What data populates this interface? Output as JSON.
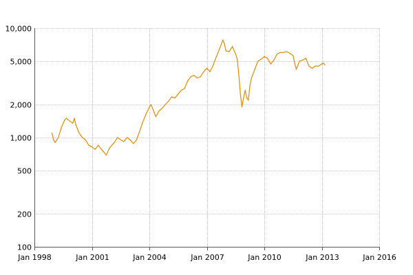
{
  "chart_data": {
    "type": "line",
    "title": "",
    "xlabel": "",
    "ylabel": "",
    "scale": {
      "y": "log"
    },
    "grid": true,
    "legend": "none",
    "xlim": [
      "1998-01",
      "2016-01"
    ],
    "ylim": [
      100,
      10000
    ],
    "x_ticks": [
      {
        "value": "1998-01",
        "label": "Jan 1998"
      },
      {
        "value": "2001-01",
        "label": "Jan 2001"
      },
      {
        "value": "2004-01",
        "label": "Jan 2004"
      },
      {
        "value": "2007-01",
        "label": "Jan 2007"
      },
      {
        "value": "2010-01",
        "label": "Jan 2010"
      },
      {
        "value": "2013-01",
        "label": "Jan 2013"
      },
      {
        "value": "2016-01",
        "label": "Jan 2016"
      }
    ],
    "y_ticks": [
      {
        "value": 100,
        "label": "100"
      },
      {
        "value": 200,
        "label": "200"
      },
      {
        "value": 500,
        "label": "500"
      },
      {
        "value": 1000,
        "label": "1,000"
      },
      {
        "value": 2000,
        "label": "2,000"
      },
      {
        "value": 5000,
        "label": "5,000"
      },
      {
        "value": 10000,
        "label": "10,000"
      }
    ],
    "series": [
      {
        "color": "#e08a00",
        "points": [
          [
            "1998-12",
            1100
          ],
          [
            "1999-01",
            950
          ],
          [
            "1999-02",
            900
          ],
          [
            "1999-04",
            1000
          ],
          [
            "1999-06",
            1250
          ],
          [
            "1999-08",
            1450
          ],
          [
            "1999-09",
            1500
          ],
          [
            "1999-11",
            1420
          ],
          [
            "2000-01",
            1350
          ],
          [
            "2000-02",
            1500
          ],
          [
            "2000-03",
            1300
          ],
          [
            "2000-05",
            1100
          ],
          [
            "2000-07",
            1000
          ],
          [
            "2000-09",
            950
          ],
          [
            "2000-11",
            850
          ],
          [
            "2001-01",
            820
          ],
          [
            "2001-03",
            780
          ],
          [
            "2001-05",
            850
          ],
          [
            "2001-07",
            780
          ],
          [
            "2001-09",
            720
          ],
          [
            "2001-10",
            690
          ],
          [
            "2001-12",
            800
          ],
          [
            "2002-03",
            900
          ],
          [
            "2002-05",
            1000
          ],
          [
            "2002-07",
            950
          ],
          [
            "2002-09",
            920
          ],
          [
            "2002-11",
            1000
          ],
          [
            "2003-01",
            950
          ],
          [
            "2003-03",
            880
          ],
          [
            "2003-05",
            950
          ],
          [
            "2003-07",
            1150
          ],
          [
            "2003-09",
            1400
          ],
          [
            "2003-11",
            1650
          ],
          [
            "2004-01",
            1900
          ],
          [
            "2004-02",
            2000
          ],
          [
            "2004-04",
            1700
          ],
          [
            "2004-05",
            1550
          ],
          [
            "2004-07",
            1750
          ],
          [
            "2004-09",
            1850
          ],
          [
            "2004-11",
            2000
          ],
          [
            "2005-01",
            2150
          ],
          [
            "2005-03",
            2350
          ],
          [
            "2005-05",
            2300
          ],
          [
            "2005-07",
            2500
          ],
          [
            "2005-09",
            2700
          ],
          [
            "2005-11",
            2800
          ],
          [
            "2006-01",
            3300
          ],
          [
            "2006-03",
            3600
          ],
          [
            "2006-05",
            3700
          ],
          [
            "2006-07",
            3500
          ],
          [
            "2006-09",
            3600
          ],
          [
            "2006-11",
            4000
          ],
          [
            "2007-01",
            4300
          ],
          [
            "2007-03",
            4000
          ],
          [
            "2007-05",
            4600
          ],
          [
            "2007-07",
            5500
          ],
          [
            "2007-09",
            6500
          ],
          [
            "2007-11",
            7800
          ],
          [
            "2007-12",
            7200
          ],
          [
            "2008-01",
            6200
          ],
          [
            "2008-03",
            6100
          ],
          [
            "2008-05",
            6800
          ],
          [
            "2008-07",
            5800
          ],
          [
            "2008-08",
            5200
          ],
          [
            "2008-09",
            3800
          ],
          [
            "2008-10",
            2500
          ],
          [
            "2008-11",
            1900
          ],
          [
            "2008-12",
            2300
          ],
          [
            "2009-01",
            2700
          ],
          [
            "2009-02",
            2300
          ],
          [
            "2009-03",
            2200
          ],
          [
            "2009-04",
            3000
          ],
          [
            "2009-05",
            3500
          ],
          [
            "2009-07",
            4200
          ],
          [
            "2009-09",
            5000
          ],
          [
            "2009-11",
            5200
          ],
          [
            "2010-01",
            5500
          ],
          [
            "2010-03",
            5300
          ],
          [
            "2010-05",
            4700
          ],
          [
            "2010-07",
            5100
          ],
          [
            "2010-09",
            5800
          ],
          [
            "2010-11",
            6000
          ],
          [
            "2011-01",
            6000
          ],
          [
            "2011-03",
            6100
          ],
          [
            "2011-05",
            5900
          ],
          [
            "2011-07",
            5600
          ],
          [
            "2011-08",
            4800
          ],
          [
            "2011-09",
            4200
          ],
          [
            "2011-11",
            5000
          ],
          [
            "2012-01",
            5100
          ],
          [
            "2012-03",
            5300
          ],
          [
            "2012-05",
            4500
          ],
          [
            "2012-07",
            4300
          ],
          [
            "2012-09",
            4500
          ],
          [
            "2012-11",
            4500
          ],
          [
            "2013-01",
            4700
          ],
          [
            "2013-02",
            4800
          ],
          [
            "2013-03",
            4600
          ]
        ]
      }
    ]
  }
}
